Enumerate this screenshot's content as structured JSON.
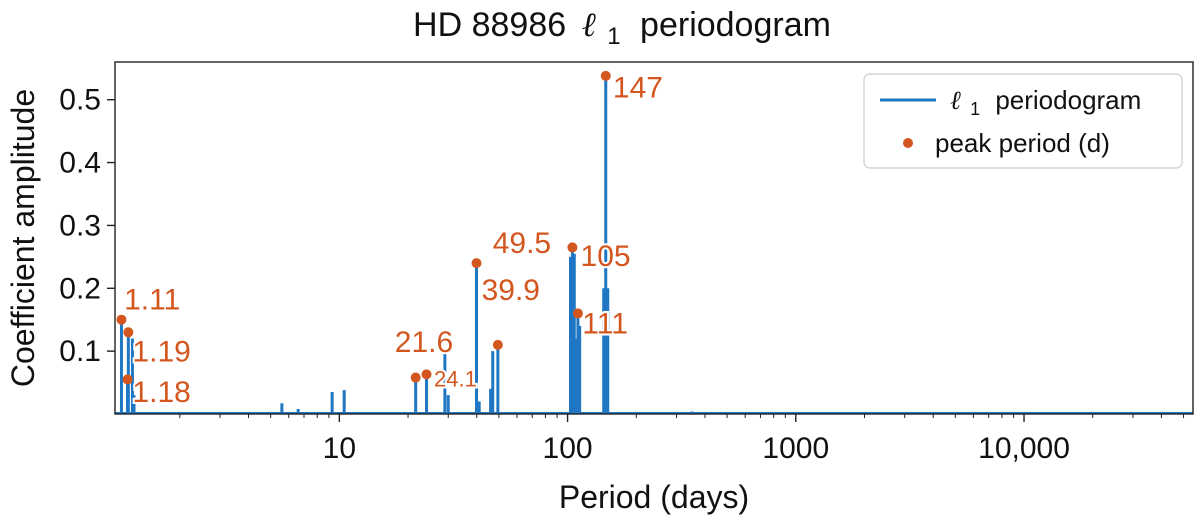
{
  "chart_data": {
    "type": "line",
    "title": "HD 88986 ℓ₁ periodogram",
    "title_parts": {
      "prefix": "HD 88986",
      "symbol": "ℓ",
      "subscript": "1",
      "suffix": "periodogram"
    },
    "xlabel": "Period (days)",
    "ylabel": "Coefficient amplitude",
    "xscale": "log",
    "xlim": [
      1.04,
      55000
    ],
    "ylim": [
      0,
      0.56
    ],
    "xticks": [
      {
        "value": 10,
        "label": "10"
      },
      {
        "value": 100,
        "label": "100"
      },
      {
        "value": 1000,
        "label": "1000"
      },
      {
        "value": 10000,
        "label": "10,000"
      }
    ],
    "yticks": [
      {
        "value": 0.1,
        "label": "0.1"
      },
      {
        "value": 0.2,
        "label": "0.2"
      },
      {
        "value": 0.3,
        "label": "0.3"
      },
      {
        "value": 0.4,
        "label": "0.4"
      },
      {
        "value": 0.5,
        "label": "0.5"
      }
    ],
    "colors": {
      "series": "#1f77c4",
      "peaks": "#d4561f",
      "frame": "#222222"
    },
    "legend": {
      "placement": "top-right",
      "entries": [
        {
          "symbol": "ℓ",
          "subscript": "1",
          "suffix": "periodogram",
          "marker": "line"
        },
        {
          "text": "peak period (d)",
          "marker": "dot"
        }
      ]
    },
    "series": [
      {
        "name": "ℓ₁ periodogram",
        "spikes": [
          {
            "x": 1.11,
            "y": 0.15
          },
          {
            "x": 1.18,
            "y": 0.055
          },
          {
            "x": 1.19,
            "y": 0.13
          },
          {
            "x": 1.24,
            "y": 0.12
          },
          {
            "x": 1.26,
            "y": 0.03
          },
          {
            "x": 2.0,
            "y": 0.003
          },
          {
            "x": 2.3,
            "y": 0.003
          },
          {
            "x": 5.6,
            "y": 0.017
          },
          {
            "x": 6.6,
            "y": 0.008
          },
          {
            "x": 9.3,
            "y": 0.035
          },
          {
            "x": 10.5,
            "y": 0.038
          },
          {
            "x": 21.6,
            "y": 0.058
          },
          {
            "x": 24.1,
            "y": 0.063
          },
          {
            "x": 29.0,
            "y": 0.1
          },
          {
            "x": 30.0,
            "y": 0.03
          },
          {
            "x": 39.9,
            "y": 0.24
          },
          {
            "x": 41.0,
            "y": 0.02
          },
          {
            "x": 46.0,
            "y": 0.04
          },
          {
            "x": 47.0,
            "y": 0.1
          },
          {
            "x": 49.5,
            "y": 0.11
          },
          {
            "x": 103,
            "y": 0.25
          },
          {
            "x": 105,
            "y": 0.265
          },
          {
            "x": 107,
            "y": 0.255
          },
          {
            "x": 109,
            "y": 0.12
          },
          {
            "x": 111,
            "y": 0.16
          },
          {
            "x": 113,
            "y": 0.14
          },
          {
            "x": 144,
            "y": 0.2
          },
          {
            "x": 147,
            "y": 0.538
          },
          {
            "x": 150,
            "y": 0.2
          },
          {
            "x": 350,
            "y": 0.004
          },
          {
            "x": 380,
            "y": 0.003
          }
        ]
      }
    ],
    "peaks": [
      {
        "x": 1.11,
        "y": 0.15,
        "label": "1.11",
        "size": 30,
        "anchor_x": 1.14,
        "anchor_y": 0.183
      },
      {
        "x": 1.19,
        "y": 0.13,
        "label": "1.19",
        "size": 30,
        "anchor_x": 1.24,
        "anchor_y": 0.1
      },
      {
        "x": 1.18,
        "y": 0.055,
        "label": "1.18",
        "size": 30,
        "anchor_x": 1.24,
        "anchor_y": 0.036
      },
      {
        "x": 21.6,
        "y": 0.058,
        "label": "21.6",
        "size": 30,
        "anchor_x": 17.5,
        "anchor_y": 0.115
      },
      {
        "x": 24.1,
        "y": 0.063,
        "label": "24.1",
        "size": 22,
        "anchor_x": 26.0,
        "anchor_y": 0.056
      },
      {
        "x": 39.9,
        "y": 0.24,
        "label": "39.9",
        "size": 30,
        "anchor_x": 42.0,
        "anchor_y": 0.198
      },
      {
        "x": 49.5,
        "y": 0.11,
        "label": "49.5",
        "size": 30,
        "anchor_x": 47.0,
        "anchor_y": 0.273
      },
      {
        "x": 105,
        "y": 0.265,
        "label": "105",
        "size": 30,
        "anchor_x": 114,
        "anchor_y": 0.252
      },
      {
        "x": 111,
        "y": 0.16,
        "label": "111",
        "size": 30,
        "anchor_x": 116,
        "anchor_y": 0.145
      },
      {
        "x": 147,
        "y": 0.538,
        "label": "147",
        "size": 30,
        "anchor_x": 158,
        "anchor_y": 0.52
      }
    ]
  }
}
